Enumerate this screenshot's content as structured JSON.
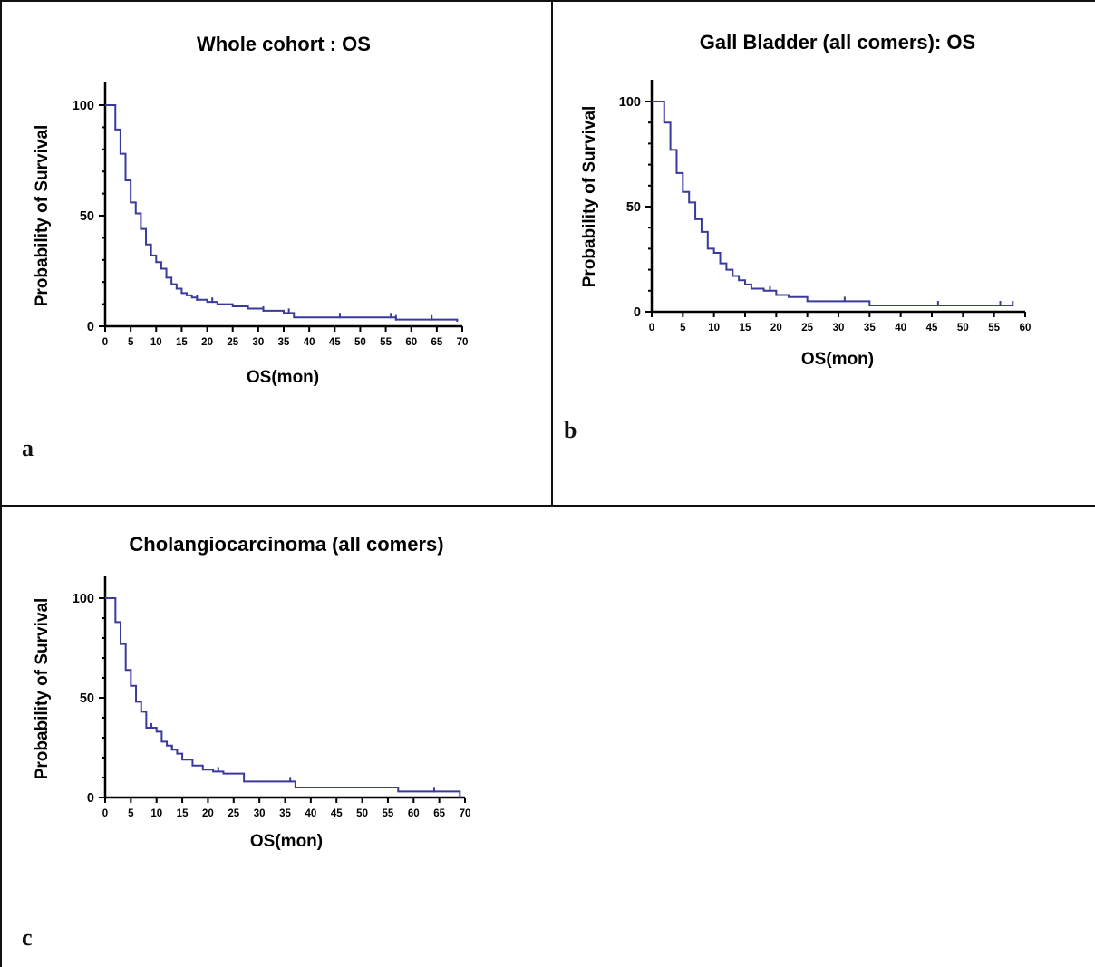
{
  "figure": {
    "panel_labels": [
      "a",
      "b",
      "c"
    ]
  },
  "colors": {
    "curve": "#3a3a9c",
    "axis": "#000000",
    "border": "#111111"
  },
  "chart_data": [
    {
      "type": "line",
      "panel": "a",
      "title": "Whole cohort : OS",
      "xlabel": "OS(mon)",
      "ylabel": "Probability of Survival",
      "xlim": [
        0,
        70
      ],
      "ylim": [
        0,
        100
      ],
      "x_ticks": [
        0,
        5,
        10,
        15,
        20,
        25,
        30,
        35,
        40,
        45,
        50,
        55,
        60,
        65,
        70
      ],
      "y_ticks": [
        0,
        50,
        100
      ],
      "step": true,
      "series": [
        {
          "x": [
            0,
            2,
            3,
            4,
            5,
            6,
            7,
            8,
            9,
            10,
            11,
            12,
            13,
            14,
            15,
            16,
            17,
            18,
            20,
            22,
            25,
            28,
            31,
            35,
            37,
            45,
            55,
            57,
            65,
            69
          ],
          "y": [
            100,
            89,
            78,
            66,
            56,
            51,
            44,
            37,
            32,
            29,
            26,
            22,
            19,
            17,
            15,
            14,
            13,
            12,
            11,
            10,
            9,
            8,
            7,
            6,
            4,
            4,
            4,
            3,
            3,
            2
          ],
          "censored_x": [
            18,
            21,
            31,
            36,
            46,
            56,
            57,
            64
          ]
        }
      ]
    },
    {
      "type": "line",
      "panel": "b",
      "title": "Gall Bladder (all comers): OS",
      "xlabel": "OS(mon)",
      "ylabel": "Probability of Survival",
      "xlim": [
        0,
        60
      ],
      "ylim": [
        0,
        100
      ],
      "x_ticks": [
        0,
        5,
        10,
        15,
        20,
        25,
        30,
        35,
        40,
        45,
        50,
        55,
        60
      ],
      "y_ticks": [
        0,
        50,
        100
      ],
      "step": true,
      "series": [
        {
          "x": [
            0,
            2,
            3,
            4,
            5,
            6,
            7,
            8,
            9,
            10,
            11,
            12,
            13,
            14,
            15,
            16,
            18,
            20,
            22,
            25,
            35,
            58
          ],
          "y": [
            100,
            90,
            77,
            66,
            57,
            52,
            44,
            38,
            30,
            28,
            23,
            20,
            17,
            15,
            13,
            11,
            10,
            8,
            7,
            5,
            3,
            3
          ],
          "censored_x": [
            19,
            31,
            46,
            56,
            58
          ]
        }
      ]
    },
    {
      "type": "line",
      "panel": "c",
      "title": "Cholangiocarcinoma (all comers)",
      "xlabel": "OS(mon)",
      "ylabel": "Probability of Survival",
      "xlim": [
        0,
        70
      ],
      "ylim": [
        0,
        100
      ],
      "x_ticks": [
        0,
        5,
        10,
        15,
        20,
        25,
        30,
        35,
        40,
        45,
        50,
        55,
        60,
        65,
        70
      ],
      "y_ticks": [
        0,
        50,
        100
      ],
      "step": true,
      "series": [
        {
          "x": [
            0,
            2,
            3,
            4,
            5,
            6,
            7,
            8,
            10,
            11,
            12,
            13,
            14,
            15,
            17,
            19,
            21,
            23,
            27,
            36,
            37,
            57,
            69
          ],
          "y": [
            100,
            88,
            77,
            64,
            56,
            48,
            43,
            35,
            33,
            28,
            26,
            24,
            22,
            19,
            16,
            14,
            13,
            12,
            8,
            8,
            5,
            3,
            0
          ],
          "censored_x": [
            9,
            13,
            22,
            36,
            64
          ]
        }
      ]
    }
  ]
}
